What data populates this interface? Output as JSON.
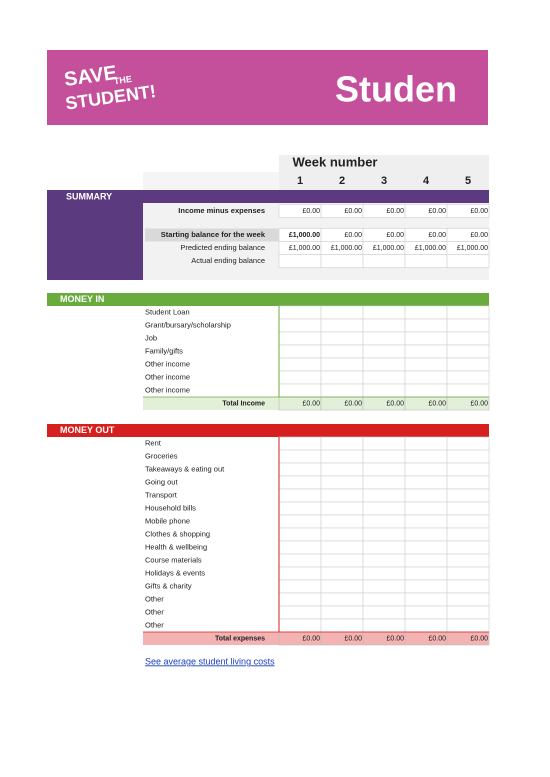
{
  "header": {
    "logo": [
      "SAVE",
      "THE",
      "STUDENT!"
    ],
    "title": "Studen"
  },
  "week_header": {
    "label": "Week number",
    "weeks": [
      1,
      2,
      3,
      4,
      5
    ]
  },
  "summary": {
    "title": "SUMMARY",
    "rows": [
      {
        "label": "Income minus expenses",
        "values": [
          "£0.00",
          "£0.00",
          "£0.00",
          "£0.00",
          "£0.00"
        ]
      },
      {
        "label": "Starting balance for the week",
        "values": [
          "£1,000.00",
          "£0.00",
          "£0.00",
          "£0.00",
          "£0.00"
        ]
      },
      {
        "label": "Predicted ending balance",
        "values": [
          "£1,000.00",
          "£1,000.00",
          "£1,000.00",
          "£1,000.00",
          "£1,000.00"
        ]
      },
      {
        "label": "Actual ending balance"
      }
    ]
  },
  "money_in": {
    "title": "MONEY IN",
    "rows": [
      "Student Loan",
      "Grant/bursary/scholarship",
      "Job",
      "Family/gifts",
      "Other income",
      "Other income",
      "Other income"
    ],
    "total": {
      "label": "Total Income",
      "values": [
        "£0.00",
        "£0.00",
        "£0.00",
        "£0.00",
        "£0.00"
      ]
    }
  },
  "money_out": {
    "title": "MONEY OUT",
    "rows": [
      "Rent",
      "Groceries",
      "Takeaways & eating out",
      "Going out",
      "Transport",
      "Household bills",
      "Mobile phone",
      "Clothes & shopping",
      "Health & wellbeing",
      "Course materials",
      "Holidays & events",
      "Gifts & charity",
      "Other",
      "Other",
      "Other"
    ],
    "total": {
      "label": "Total expenses",
      "values": [
        "£0.00",
        "£0.00",
        "£0.00",
        "£0.00",
        "£0.00"
      ]
    }
  },
  "link": "See average student living costs"
}
